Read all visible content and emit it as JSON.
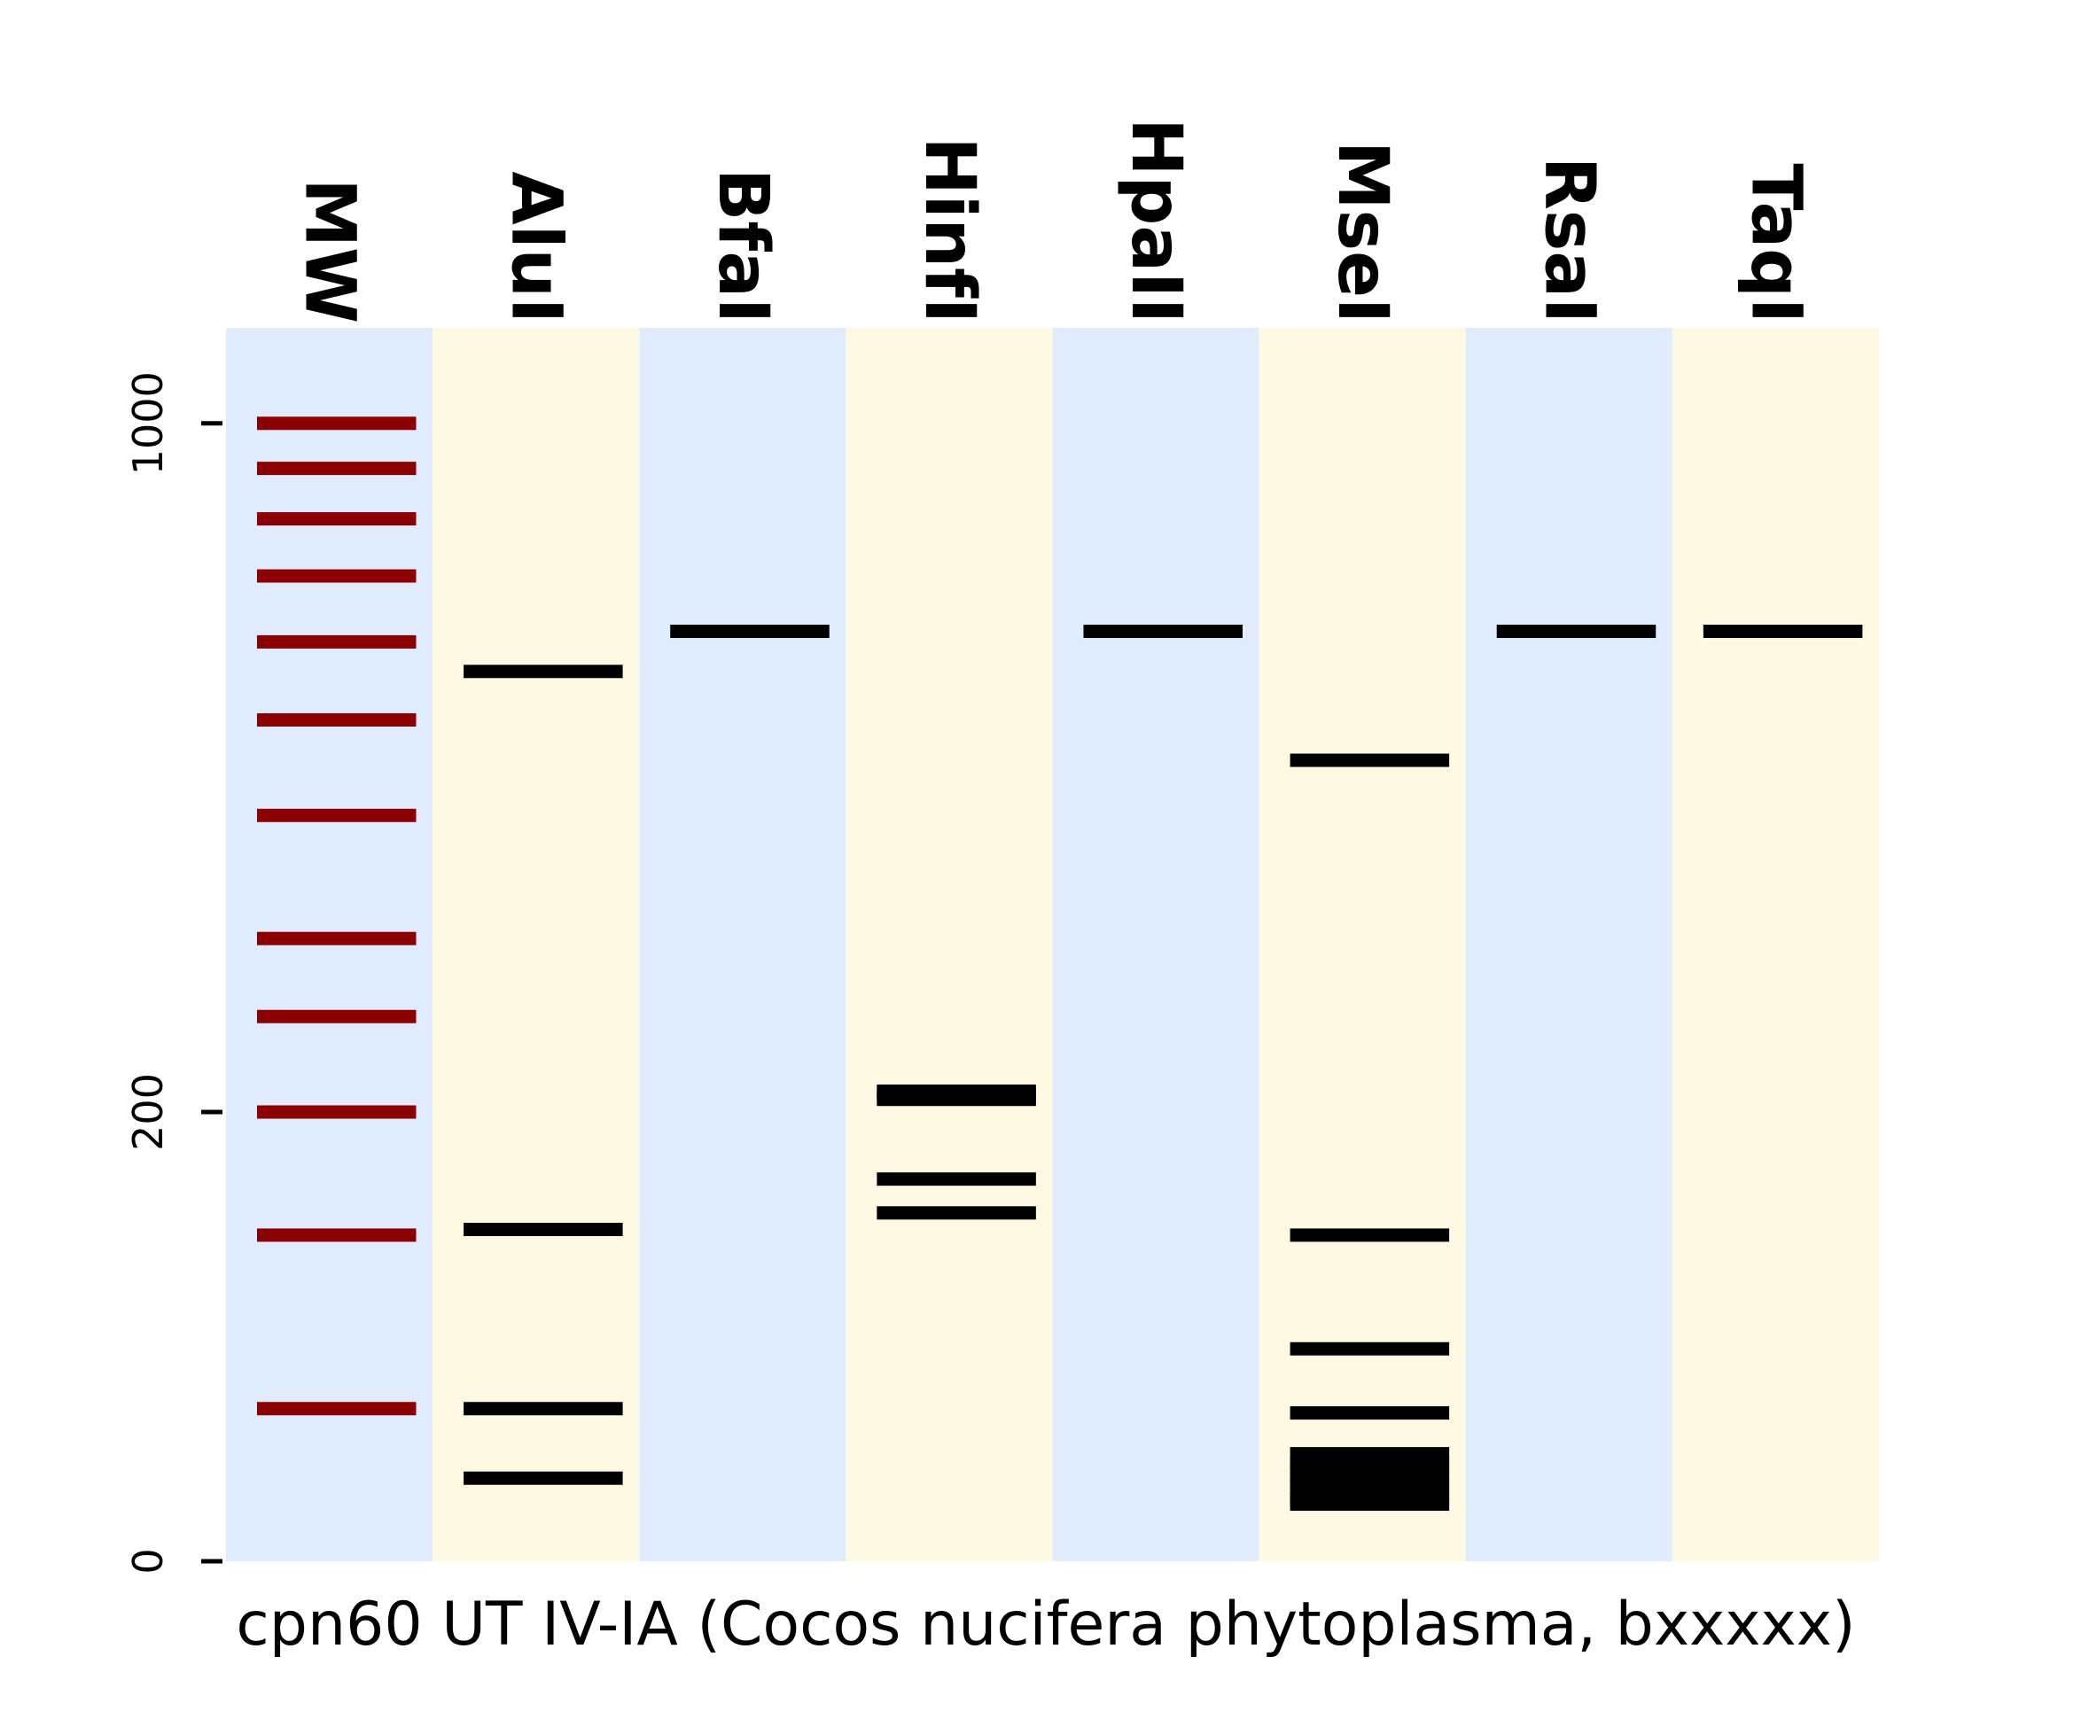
{
  "chart_data": {
    "type": "gel",
    "xlabel": "cpn60 UT IV-IA (Cocos nucifera phytoplasma, bxxxxx)",
    "ylim": [
      0,
      1250
    ],
    "yticks": [
      0,
      200,
      1000
    ],
    "colors": {
      "lane_blue": "#e0ecfd",
      "lane_yellow": "#fdf9e2",
      "marker_band": "#8b0000",
      "sample_band": "#000000",
      "tick": "#000000"
    },
    "lanes": [
      {
        "name": "MW",
        "marker": true,
        "bands": [
          100,
          150,
          200,
          250,
          300,
          400,
          500,
          600,
          700,
          800,
          900,
          1000
        ]
      },
      {
        "name": "AluI",
        "bands": [
          85,
          100,
          152,
          560
        ]
      },
      {
        "name": "BfaI",
        "bands": [
          615
        ]
      },
      {
        "name": "HinfI",
        "bands": [
          158,
          171,
          206,
          208,
          210
        ]
      },
      {
        "name": "HpaII",
        "bands": [
          615
        ]
      },
      {
        "name": "MseI",
        "bands": [
          80,
          81,
          82,
          84,
          85,
          87,
          88,
          90,
          99,
          115,
          150,
          455
        ]
      },
      {
        "name": "RsaI",
        "bands": [
          615
        ]
      },
      {
        "name": "TaqI",
        "bands": [
          615
        ]
      }
    ]
  }
}
